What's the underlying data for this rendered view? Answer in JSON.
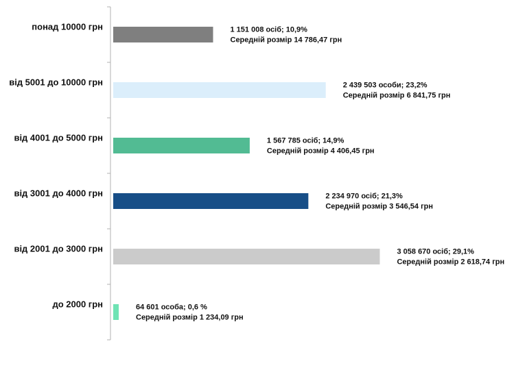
{
  "chart_data": {
    "type": "bar",
    "orientation": "horizontal",
    "title": "",
    "xlabel": "",
    "ylabel": "",
    "xlim": [
      0,
      30
    ],
    "grid": false,
    "legend": "none",
    "categories": [
      "понад 10000 грн",
      "від 5001 до 10000 грн",
      "від 4001 до 5000 грн",
      "від 3001 до 4000 грн",
      "від 2001 до 3000 грн",
      "до 2000 грн"
    ],
    "values": [
      10.9,
      23.2,
      14.9,
      21.3,
      29.1,
      0.6
    ],
    "colors": [
      "#7f7f7f",
      "#dbeefb",
      "#52bb93",
      "#174e87",
      "#cbcbcb",
      "#6fe3b4"
    ],
    "data_labels": [
      {
        "line1": "1 151 008 осіб;  10,9%",
        "line2": "Середній розмір 14 786,47 грн"
      },
      {
        "line1": "2 439 503 особи; 23,2%",
        "line2": "Середній розмір 6 841,75 грн"
      },
      {
        "line1": "1 567 785 осіб; 14,9%",
        "line2": "Середній розмір 4 406,45 грн"
      },
      {
        "line1": "2 234 970 осіб; 21,3%",
        "line2": "Середній розмір 3 546,54 грн"
      },
      {
        "line1": "3 058 670 осіб; 29,1%",
        "line2": "Середній розмір 2 618,74 грн"
      },
      {
        "line1": "64 601 особа; 0,6 %",
        "line2": "Середній розмір 1 234,09 грн"
      }
    ]
  }
}
